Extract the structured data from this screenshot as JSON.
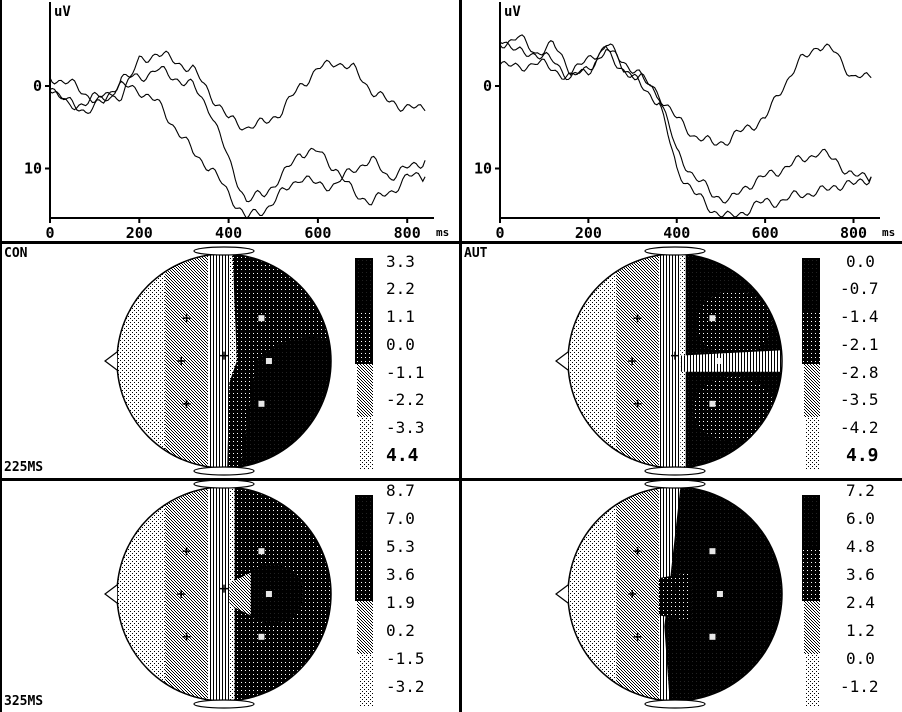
{
  "chart_data": [
    {
      "type": "line",
      "panel": "left-waveform",
      "ylabel": "uV",
      "xunit": "ms",
      "x_ticks": [
        "0",
        "200",
        "400",
        "600",
        "800"
      ],
      "y_ticks": [
        "0",
        "10"
      ],
      "xlim": [
        0,
        860
      ],
      "ylim": [
        -8,
        16
      ],
      "y_inverted": true,
      "series": [
        {
          "x": [
            0,
            40,
            80,
            120,
            160,
            200,
            240,
            280,
            320,
            360,
            400,
            440,
            480,
            520,
            560,
            600,
            640,
            680,
            720,
            760,
            800,
            840
          ],
          "y": [
            -1,
            -0.5,
            1,
            2,
            1,
            -3,
            -4,
            -3,
            -2,
            1,
            4,
            5,
            4.5,
            3,
            0,
            -2,
            -3,
            -2,
            0.5,
            2,
            2.5,
            3
          ]
        },
        {
          "x": [
            0,
            40,
            80,
            120,
            160,
            200,
            240,
            280,
            320,
            360,
            400,
            440,
            480,
            520,
            560,
            600,
            640,
            680,
            720,
            760,
            800,
            840
          ],
          "y": [
            0,
            2,
            3,
            2,
            -1,
            -1,
            -2,
            -1,
            0,
            3,
            9,
            14,
            13,
            11,
            8,
            8,
            10,
            13,
            14,
            13,
            11,
            11
          ]
        },
        {
          "x": [
            0,
            40,
            80,
            120,
            160,
            200,
            240,
            280,
            320,
            360,
            400,
            440,
            480,
            520,
            560,
            600,
            640,
            680,
            720,
            760,
            800,
            840
          ],
          "y": [
            0,
            2.5,
            2,
            1,
            0,
            0.5,
            2,
            5,
            8,
            10,
            13,
            16,
            15,
            13,
            11,
            12,
            12,
            10,
            9,
            11,
            10,
            9
          ]
        }
      ]
    },
    {
      "type": "line",
      "panel": "right-waveform",
      "ylabel": "uV",
      "xunit": "ms",
      "x_ticks": [
        "0",
        "200",
        "400",
        "600",
        "800"
      ],
      "y_ticks": [
        "0",
        "10"
      ],
      "xlim": [
        0,
        860
      ],
      "ylim": [
        -8,
        16
      ],
      "y_inverted": true,
      "series": [
        {
          "x": [
            0,
            40,
            80,
            120,
            160,
            200,
            240,
            280,
            320,
            360,
            400,
            440,
            480,
            520,
            560,
            600,
            640,
            680,
            720,
            760,
            800,
            840
          ],
          "y": [
            -5,
            -6,
            -4,
            -5,
            -2,
            -3,
            -5,
            -2,
            -1,
            1,
            4,
            6,
            7,
            6.5,
            5,
            4,
            0,
            -3,
            -5,
            -4,
            -1,
            -1
          ]
        },
        {
          "x": [
            0,
            40,
            80,
            120,
            160,
            200,
            240,
            280,
            320,
            360,
            400,
            440,
            480,
            520,
            560,
            600,
            640,
            680,
            720,
            760,
            800,
            840
          ],
          "y": [
            -6,
            -4,
            -4,
            -3,
            -1,
            -2,
            -5,
            -3,
            -1,
            1,
            8,
            11,
            13,
            14,
            12,
            11,
            10,
            9,
            8,
            9,
            11,
            11
          ]
        },
        {
          "x": [
            0,
            40,
            80,
            120,
            160,
            200,
            240,
            280,
            320,
            360,
            400,
            440,
            480,
            520,
            560,
            600,
            640,
            680,
            720,
            760,
            800,
            840
          ],
          "y": [
            -3,
            -2,
            -3,
            -2,
            -1,
            -2,
            -4,
            -2,
            0,
            2,
            10,
            13,
            15,
            16,
            15,
            14,
            14,
            13,
            13,
            12,
            12,
            11
          ]
        }
      ]
    }
  ],
  "maps": [
    {
      "label": "CON",
      "time_label": "225MS",
      "legend": [
        "3.3",
        "2.2",
        "1.1",
        "0.0",
        "-1.1",
        "-2.2",
        "-3.3",
        "4.4"
      ]
    },
    {
      "label": "AUT",
      "time_label": "",
      "legend": [
        "0.0",
        "-0.7",
        "-1.4",
        "-2.1",
        "-2.8",
        "-3.5",
        "-4.2",
        "4.9"
      ]
    },
    {
      "label": "",
      "time_label": "325MS",
      "legend": [
        "8.7",
        "7.0",
        "5.3",
        "3.6",
        "1.9",
        "0.2",
        "-1.5",
        "-3.2"
      ]
    },
    {
      "label": "",
      "time_label": "",
      "legend": [
        "7.2",
        "6.0",
        "4.8",
        "3.6",
        "2.4",
        "1.2",
        "0.0",
        "-1.2"
      ]
    }
  ],
  "colors": {
    "ink": "#000000",
    "paper": "#ffffff"
  }
}
